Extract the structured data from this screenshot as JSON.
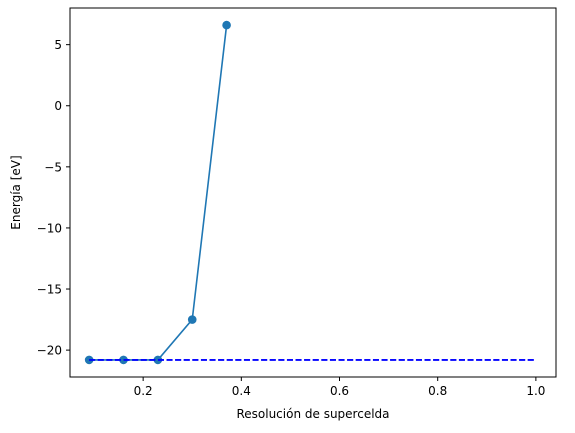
{
  "chart_data": {
    "type": "line",
    "xlabel": "Resolución de supercelda",
    "ylabel": "Energía [eV]",
    "xlim": [
      0.051,
      1.041
    ],
    "ylim": [
      -22.2,
      8.0
    ],
    "xticks": [
      0.2,
      0.4,
      0.6,
      0.8,
      1.0
    ],
    "xtick_labels": [
      "0.2",
      "0.4",
      "0.6",
      "0.8",
      "1.0"
    ],
    "yticks": [
      -20,
      -15,
      -10,
      -5,
      0,
      5
    ],
    "ytick_labels": [
      "−20",
      "−15",
      "−10",
      "−5",
      "0",
      "5"
    ],
    "grid": false,
    "series": [
      {
        "style": "line-markers",
        "color": "#1f77b4",
        "x": [
          0.09,
          0.16,
          0.23,
          0.3,
          0.37
        ],
        "y": [
          -20.8,
          -20.8,
          -20.8,
          -17.5,
          6.6
        ]
      },
      {
        "style": "dashed",
        "color": "#0000ff",
        "x": [
          0.09,
          1.0
        ],
        "y": [
          -20.8,
          -20.8
        ]
      }
    ]
  }
}
